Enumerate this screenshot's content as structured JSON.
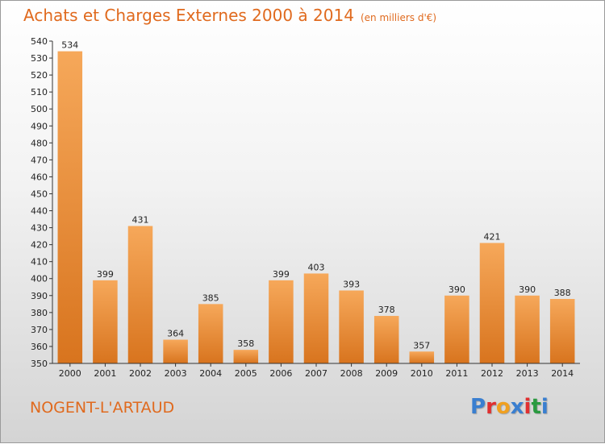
{
  "header": {
    "title": "Achats et Charges Externes 2000 à 2014",
    "unit": "(en milliers d'€)"
  },
  "footer": {
    "city": "NOGENT-L'ARTAUD",
    "logo_text": "Proxiti",
    "logo_colors": [
      "#3a7fd0",
      "#e03030",
      "#f0a020",
      "#3a7fd0",
      "#e03030",
      "#2a9a40",
      "#3a7fd0"
    ]
  },
  "colors": {
    "accent": "#e06a1e",
    "bar_light": "#f6a85a",
    "bar_dark": "#d8741e"
  },
  "chart_data": {
    "type": "bar",
    "categories": [
      "2000",
      "2001",
      "2002",
      "2003",
      "2004",
      "2005",
      "2006",
      "2007",
      "2008",
      "2009",
      "2010",
      "2011",
      "2012",
      "2013",
      "2014"
    ],
    "values": [
      534,
      399,
      431,
      364,
      385,
      358,
      399,
      403,
      393,
      378,
      357,
      390,
      421,
      390,
      388
    ],
    "ylim": [
      350,
      540
    ],
    "ytick_step": 10,
    "grid": false,
    "legend": "none"
  }
}
